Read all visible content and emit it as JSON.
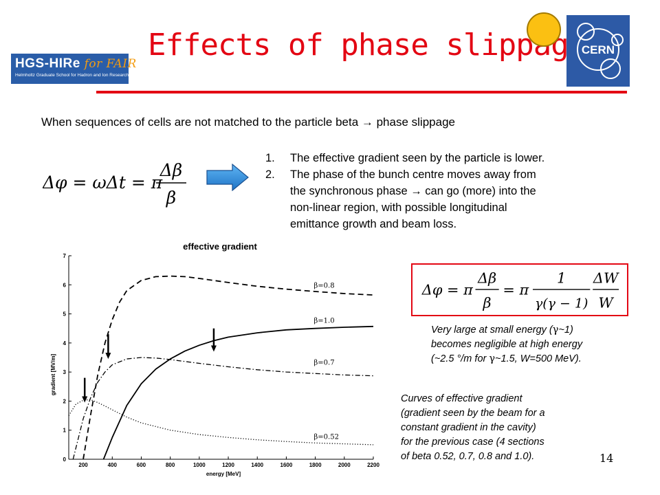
{
  "title": "Effects of phase slippage",
  "logos": {
    "hgs_main": "HGS-HIRe",
    "hgs_fair": "for FAIR",
    "hgs_sub": "Helmholtz Graduate School for Hadron and Ion Research",
    "cern": "CERN"
  },
  "intro": "When sequences of cells are not matched to the particle beta → phase slippage",
  "equation_1": {
    "lhs": "Δφ = ωΔt = π",
    "numerator": "Δβ",
    "denominator": "β"
  },
  "points": [
    {
      "num": "1.",
      "lines": [
        "The effective gradient seen by the particle is lower."
      ]
    },
    {
      "num": "2.",
      "lines": [
        "The phase of the bunch centre moves away from",
        "the synchronous phase → can go (more) into the",
        "non-linear region, with possible longitudinal",
        "emittance growth and beam loss."
      ]
    }
  ],
  "equation_2": {
    "part_a": "Δφ = π",
    "frac1_num": "Δβ",
    "frac1_den": "β",
    "part_b": "= π",
    "frac2_num": "1",
    "frac2_den": "γ(γ − 1)",
    "frac3_num": "ΔW",
    "frac3_den": "W"
  },
  "note_1": {
    "line1a": "Very large at small energy (",
    "gamma": "γ",
    "line1b": "~1)",
    "line2": "becomes negligible at high energy",
    "line3a": "(~2.5 °/m for ",
    "line3b": "~1.5, W=500 MeV)."
  },
  "note_2": {
    "lines": [
      "Curves of effective gradient",
      "(gradient seen by the beam for a",
      "constant  gradient in the cavity)",
      "for the previous case (4 sections",
      "of beta 0.52, 0.7, 0.8 and 1.0)."
    ]
  },
  "page_number": "14",
  "chart_data": {
    "type": "line",
    "title": "effective gradient",
    "xlabel": "energy [MeV]",
    "ylabel": "gradient [MV/m]",
    "xlim": [
      100,
      2200
    ],
    "ylim": [
      0,
      7
    ],
    "x_ticks": [
      200,
      400,
      600,
      800,
      1000,
      1200,
      1400,
      1600,
      1800,
      2000,
      2200
    ],
    "y_ticks": [
      0,
      1,
      2,
      3,
      4,
      5,
      6,
      7
    ],
    "grid": false,
    "series": [
      {
        "name": "β=0.8",
        "style": "dashed",
        "points": [
          [
            200,
            0
          ],
          [
            250,
            1.5
          ],
          [
            300,
            2.9
          ],
          [
            350,
            4.0
          ],
          [
            400,
            4.8
          ],
          [
            450,
            5.4
          ],
          [
            500,
            5.8
          ],
          [
            600,
            6.15
          ],
          [
            700,
            6.28
          ],
          [
            800,
            6.3
          ],
          [
            900,
            6.28
          ],
          [
            1000,
            6.22
          ],
          [
            1200,
            6.08
          ],
          [
            1400,
            5.95
          ],
          [
            1600,
            5.85
          ],
          [
            1800,
            5.77
          ],
          [
            2000,
            5.7
          ],
          [
            2200,
            5.65
          ]
        ]
      },
      {
        "name": "β=1.0",
        "style": "solid",
        "points": [
          [
            340,
            0
          ],
          [
            400,
            0.75
          ],
          [
            500,
            1.85
          ],
          [
            600,
            2.6
          ],
          [
            700,
            3.1
          ],
          [
            800,
            3.45
          ],
          [
            900,
            3.72
          ],
          [
            1000,
            3.92
          ],
          [
            1100,
            4.08
          ],
          [
            1200,
            4.2
          ],
          [
            1400,
            4.35
          ],
          [
            1600,
            4.45
          ],
          [
            1800,
            4.5
          ],
          [
            2000,
            4.54
          ],
          [
            2200,
            4.57
          ]
        ]
      },
      {
        "name": "β=0.7",
        "style": "dashdot",
        "points": [
          [
            130,
            0
          ],
          [
            200,
            1.4
          ],
          [
            250,
            2.1
          ],
          [
            300,
            2.65
          ],
          [
            350,
            3.0
          ],
          [
            400,
            3.25
          ],
          [
            500,
            3.45
          ],
          [
            600,
            3.5
          ],
          [
            700,
            3.48
          ],
          [
            800,
            3.43
          ],
          [
            1000,
            3.3
          ],
          [
            1200,
            3.18
          ],
          [
            1400,
            3.08
          ],
          [
            1600,
            3.0
          ],
          [
            1800,
            2.95
          ],
          [
            2000,
            2.9
          ],
          [
            2200,
            2.87
          ]
        ]
      },
      {
        "name": "β=0.52",
        "style": "dotted",
        "points": [
          [
            100,
            1.5
          ],
          [
            150,
            1.9
          ],
          [
            200,
            2.03
          ],
          [
            250,
            2.05
          ],
          [
            300,
            1.95
          ],
          [
            350,
            1.83
          ],
          [
            400,
            1.7
          ],
          [
            500,
            1.45
          ],
          [
            600,
            1.25
          ],
          [
            800,
            1.0
          ],
          [
            1000,
            0.85
          ],
          [
            1200,
            0.75
          ],
          [
            1400,
            0.67
          ],
          [
            1600,
            0.61
          ],
          [
            1800,
            0.56
          ],
          [
            2000,
            0.53
          ],
          [
            2200,
            0.5
          ]
        ]
      }
    ],
    "legend_labels": [
      {
        "text": "β=0.8",
        "x": 1790,
        "y": 5.9
      },
      {
        "text": "β=1.0",
        "x": 1790,
        "y": 4.7
      },
      {
        "text": "β=0.7",
        "x": 1790,
        "y": 3.25
      },
      {
        "text": "β=0.52",
        "x": 1790,
        "y": 0.7
      }
    ],
    "annotations": [
      {
        "type": "arrow-down",
        "x": 210,
        "y_from": 2.8,
        "y_to": 1.95
      },
      {
        "type": "arrow-down",
        "x": 372,
        "y_from": 4.3,
        "y_to": 3.45
      },
      {
        "type": "arrow-down",
        "x": 1100,
        "y_from": 4.5,
        "y_to": 3.7
      }
    ]
  }
}
